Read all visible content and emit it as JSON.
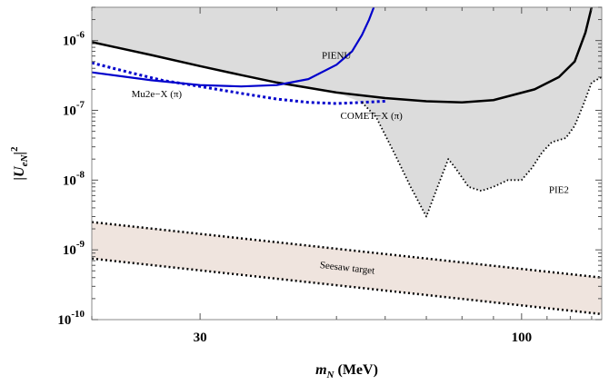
{
  "chart_data": {
    "type": "line",
    "xscale": "log",
    "yscale": "log",
    "xlim": [
      20,
      135
    ],
    "ylim": [
      1e-10,
      3e-06
    ],
    "xlabel": "m_N (MeV)",
    "ylabel": "|U_eN|^2",
    "xticks": [
      {
        "value": 30,
        "label": "30"
      },
      {
        "value": 100,
        "label": "100"
      }
    ],
    "yticks": [
      {
        "value": 1e-10,
        "label": "10^-10",
        "base": "10",
        "exp": "-10"
      },
      {
        "value": 1e-09,
        "label": "10^-9",
        "base": "10",
        "exp": "-9"
      },
      {
        "value": 1e-08,
        "label": "10^-8",
        "base": "10",
        "exp": "-8"
      },
      {
        "value": 1e-07,
        "label": "10^-7",
        "base": "10",
        "exp": "-7"
      },
      {
        "value": 1e-06,
        "label": "10^-6",
        "base": "10",
        "exp": "-6"
      }
    ],
    "grid": false,
    "series": [
      {
        "name": "PIENU",
        "style": "solid",
        "color": "#000000",
        "role": "excluded-boundary",
        "points": [
          [
            20,
            9.5e-07
          ],
          [
            25,
            6.2e-07
          ],
          [
            30,
            4.3e-07
          ],
          [
            35,
            3.2e-07
          ],
          [
            40,
            2.5e-07
          ],
          [
            50,
            1.8e-07
          ],
          [
            60,
            1.5e-07
          ],
          [
            70,
            1.35e-07
          ],
          [
            80,
            1.3e-07
          ],
          [
            90,
            1.4e-07
          ],
          [
            105,
            2e-07
          ],
          [
            115,
            3e-07
          ],
          [
            122,
            5e-07
          ],
          [
            127,
            1.3e-06
          ],
          [
            130,
            3e-06
          ]
        ]
      },
      {
        "name": "Mu2e−X (π)",
        "style": "solid",
        "color": "#0000cc",
        "points": [
          [
            20,
            3.5e-07
          ],
          [
            25,
            2.7e-07
          ],
          [
            30,
            2.3e-07
          ],
          [
            35,
            2.2e-07
          ],
          [
            40,
            2.3e-07
          ],
          [
            45,
            2.8e-07
          ],
          [
            50,
            4.5e-07
          ],
          [
            53,
            7e-07
          ],
          [
            55,
            1.2e-06
          ],
          [
            56.5,
            2e-06
          ],
          [
            57.5,
            3e-06
          ]
        ]
      },
      {
        "name": "COMET−X (π)",
        "style": "dotted",
        "color": "#0000cc",
        "points": [
          [
            20,
            4.8e-07
          ],
          [
            23,
            3.5e-07
          ],
          [
            26,
            2.7e-07
          ],
          [
            30,
            2.2e-07
          ],
          [
            35,
            1.75e-07
          ],
          [
            40,
            1.45e-07
          ],
          [
            45,
            1.3e-07
          ],
          [
            50,
            1.25e-07
          ],
          [
            55,
            1.3e-07
          ],
          [
            60,
            1.35e-07
          ]
        ]
      },
      {
        "name": "PIE2",
        "style": "dotted",
        "color": "#000000",
        "role": "excluded-boundary",
        "points": [
          [
            55,
            1.3e-07
          ],
          [
            58,
            8e-08
          ],
          [
            62,
            2.5e-08
          ],
          [
            66,
            8e-09
          ],
          [
            70,
            3e-09
          ],
          [
            73,
            8e-09
          ],
          [
            76,
            2e-08
          ],
          [
            78,
            1.5e-08
          ],
          [
            82,
            8e-09
          ],
          [
            86,
            7e-09
          ],
          [
            90,
            8e-09
          ],
          [
            95,
            1e-08
          ],
          [
            100,
            1e-08
          ],
          [
            104,
            1.5e-08
          ],
          [
            108,
            2.5e-08
          ],
          [
            112,
            3.5e-08
          ],
          [
            118,
            4e-08
          ],
          [
            122,
            6e-08
          ],
          [
            126,
            1.2e-07
          ],
          [
            130,
            2.5e-07
          ],
          [
            135,
            3e-07
          ]
        ]
      }
    ],
    "excluded_region": {
      "fill": "#dcdcdc",
      "description_boundary": [
        "PIENU",
        "PIE2"
      ]
    },
    "seesaw_band": {
      "name": "Seesaw target",
      "fill": "#efe4de",
      "upper": [
        [
          20,
          2.5e-09
        ],
        [
          135,
          4e-10
        ]
      ],
      "lower": [
        [
          20,
          7.5e-10
        ],
        [
          135,
          1.2e-10
        ]
      ]
    },
    "annotations": [
      {
        "text": "PIENU",
        "x": 50,
        "y": 5.5e-07
      },
      {
        "text": "Mu2e−X (π)",
        "x": 25.5,
        "y": 1.55e-07
      },
      {
        "text": "COMET−X (π)",
        "x": 57,
        "y": 7.5e-08
      },
      {
        "text": "PIE2",
        "x": 115,
        "y": 6.5e-09
      },
      {
        "text": "Seesaw target",
        "x": 52,
        "y": 5e-10
      }
    ],
    "label_text": {
      "x_main": "m",
      "x_sub": "N",
      "x_unit": " (MeV)",
      "y_main": "|U",
      "y_sub": "eN",
      "y_close": "|",
      "y_sup": "2"
    }
  }
}
